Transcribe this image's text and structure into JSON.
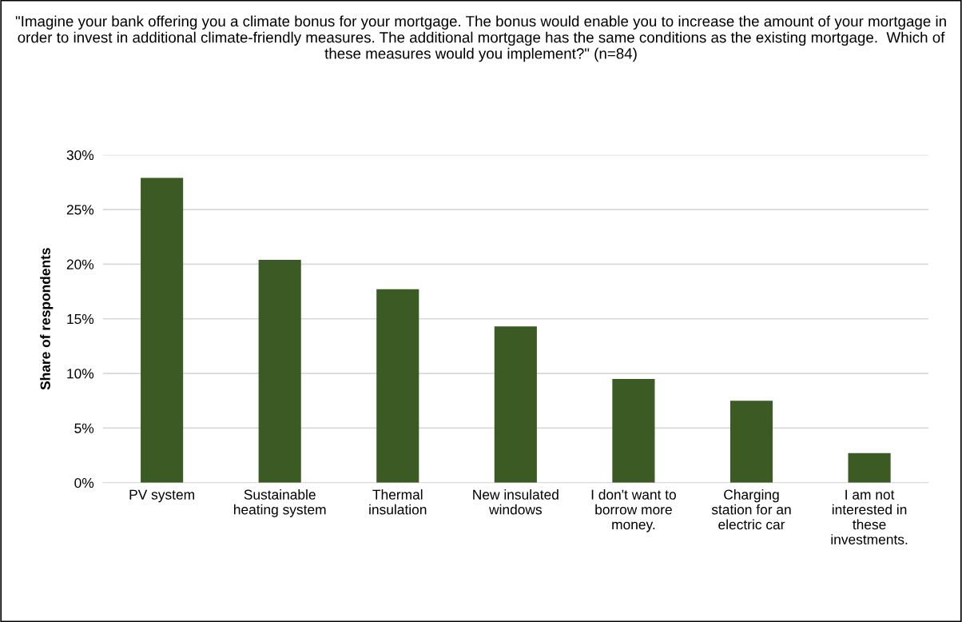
{
  "chart_data": {
    "type": "bar",
    "title": "\"Imagine your bank offering you a climate bonus for your mortgage. The bonus would enable you to increase the amount of your mortgage in order to invest in additional climate-friendly measures. The additional mortgage has the same conditions as the existing mortgage.  Which of these measures would you implement?\" (n=84)",
    "ylabel": "Share of respondents",
    "categories": [
      "PV system",
      "Sustainable\nheating system",
      "Thermal\ninsulation",
      "New insulated\nwindows",
      "I don't want to\nborrow more\nmoney.",
      "Charging\nstation for an\nelectric car",
      "I am not\ninterested in\nthese\ninvestments."
    ],
    "values": [
      27.9,
      20.4,
      17.7,
      14.3,
      9.5,
      7.5,
      2.7
    ],
    "color": "#3b5a24",
    "ylim": [
      0,
      30
    ],
    "yticks": [
      {
        "value": 0,
        "label": "0%"
      },
      {
        "value": 5,
        "label": "5%"
      },
      {
        "value": 10,
        "label": "10%"
      },
      {
        "value": 15,
        "label": "15%"
      },
      {
        "value": 20,
        "label": "20%"
      },
      {
        "value": 25,
        "label": "25%"
      },
      {
        "value": 30,
        "label": "30%"
      }
    ],
    "grid": "y"
  }
}
